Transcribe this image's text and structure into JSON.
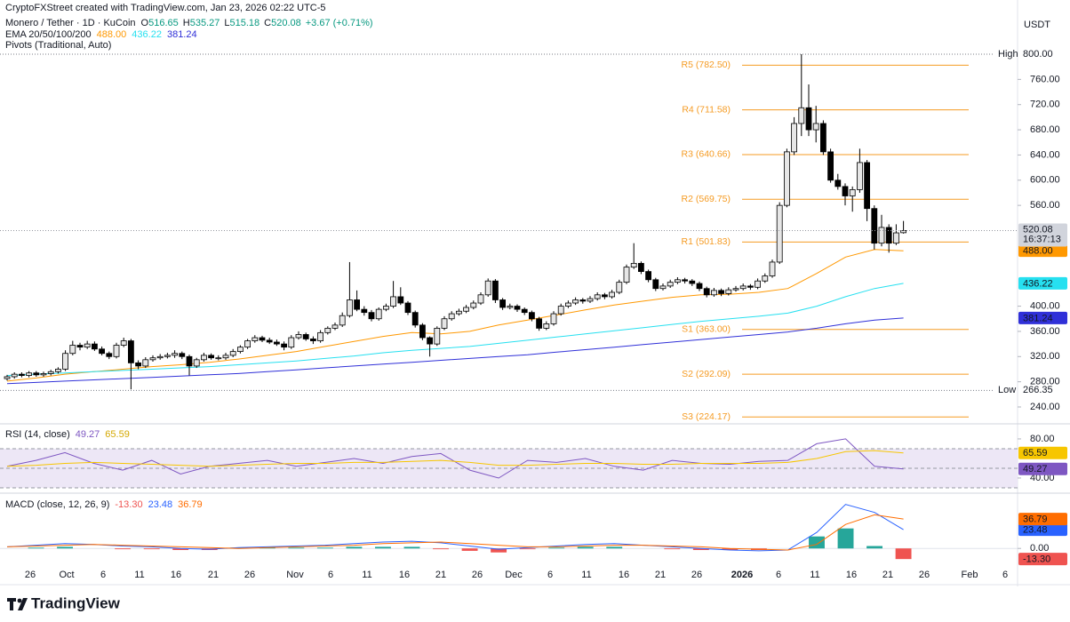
{
  "header": {
    "attribution": "CryptoFXStreet created with TradingView.com, Jan 23, 2026 02:22 UTC-5",
    "symbol": "Monero / Tether · 1D · KuCoin",
    "ohlc_keys": [
      "O",
      "H",
      "L",
      "C"
    ],
    "change": "+3.67 (+0.71%)",
    "ema_title": "EMA 20/50/100/200",
    "pivots_title": "Pivots (Traditional, Auto)",
    "currency": "USDT"
  },
  "chart_data": [
    {
      "type": "candlestick",
      "up_color": "#e6e6e6",
      "down_color": "#000000",
      "border_color": "#000000",
      "ylim": [
        240,
        800
      ],
      "yticks": [
        {
          "value": 760,
          "label": "760.00"
        },
        {
          "value": 720,
          "label": "720.00"
        },
        {
          "value": 680,
          "label": "680.00"
        },
        {
          "value": 640,
          "label": "640.00"
        },
        {
          "value": 600,
          "label": "600.00"
        },
        {
          "value": 560,
          "label": "560.00"
        },
        {
          "value": 400,
          "label": "400.00"
        },
        {
          "value": 360,
          "label": "360.00"
        },
        {
          "value": 320,
          "label": "320.00"
        },
        {
          "value": 280,
          "label": "280.00"
        },
        {
          "value": 240,
          "label": "240.00"
        }
      ],
      "xticks": [
        "26",
        "Oct",
        "6",
        "11",
        "16",
        "21",
        "26",
        "Nov",
        "6",
        "11",
        "16",
        "21",
        "26",
        "Dec",
        "6",
        "11",
        "16",
        "21",
        "26",
        "2026",
        "6",
        "11",
        "16",
        "21",
        "26",
        "Feb",
        "6"
      ],
      "countdown": "16:37:13",
      "high": {
        "label": "High",
        "value": 800,
        "value_label": "800.00"
      },
      "low": {
        "label": "Low",
        "value": 266.35
      },
      "pivot_color": "#f59b23",
      "pivots": [
        {
          "label": "R5 (782.50)",
          "value": 782.5
        },
        {
          "label": "R4 (711.58)",
          "value": 711.58
        },
        {
          "label": "R3 (640.66)",
          "value": 640.66
        },
        {
          "label": "R2 (569.75)",
          "value": 569.75
        },
        {
          "label": "R1 (501.83)",
          "value": 501.83
        },
        {
          "label": "S1 (363.00)",
          "value": 363
        },
        {
          "label": "S2 (292.09)",
          "value": 292.09
        },
        {
          "label": "S3 (224.17)",
          "value": 224.17
        }
      ],
      "series": [
        {
          "color": "#ff9800",
          "last_label": "488.00",
          "values": [
            281,
            286,
            292,
            296,
            300,
            304,
            307,
            311,
            316,
            322,
            328,
            336,
            344,
            352,
            358,
            356,
            360,
            370,
            378,
            386,
            394,
            402,
            408,
            414,
            418,
            419,
            422,
            428,
            452,
            478,
            490,
            488
          ]
        },
        {
          "color": "#26e0f0",
          "last_label": "436.22",
          "values": [
            290,
            292,
            294,
            296,
            298,
            300,
            302,
            304,
            307,
            310,
            313,
            317,
            321,
            326,
            330,
            333,
            336,
            341,
            346,
            351,
            356,
            361,
            366,
            371,
            376,
            380,
            384,
            389,
            400,
            415,
            428,
            436.22
          ]
        },
        {
          "color": "#3030d8",
          "last_label": "381.24",
          "values": [
            277,
            279,
            281,
            283,
            285,
            287,
            289,
            291,
            293,
            296,
            299,
            302,
            305,
            308,
            311,
            314,
            317,
            320,
            323,
            327,
            331,
            335,
            339,
            343,
            347,
            351,
            355,
            359,
            365,
            372,
            378,
            381.24
          ]
        }
      ],
      "candles": [
        [
          285,
          291,
          282,
          288
        ],
        [
          288,
          295,
          285,
          292
        ],
        [
          292,
          295,
          287,
          290
        ],
        [
          290,
          297,
          287,
          294
        ],
        [
          294,
          297,
          288,
          291
        ],
        [
          291,
          296,
          288,
          293
        ],
        [
          293,
          299,
          290,
          296
        ],
        [
          296,
          303,
          293,
          300
        ],
        [
          300,
          330,
          297,
          325
        ],
        [
          325,
          345,
          322,
          338
        ],
        [
          338,
          342,
          330,
          335
        ],
        [
          335,
          345,
          332,
          340
        ],
        [
          340,
          344,
          329,
          332
        ],
        [
          332,
          336,
          322,
          325
        ],
        [
          325,
          328,
          316,
          320
        ],
        [
          320,
          342,
          317,
          338
        ],
        [
          338,
          350,
          335,
          345
        ],
        [
          345,
          348,
          268,
          310
        ],
        [
          310,
          314,
          300,
          305
        ],
        [
          305,
          319,
          302,
          315
        ],
        [
          315,
          322,
          312,
          318
        ],
        [
          318,
          324,
          315,
          320
        ],
        [
          320,
          326,
          317,
          322
        ],
        [
          322,
          330,
          318,
          325
        ],
        [
          325,
          328,
          316,
          320
        ],
        [
          320,
          323,
          290,
          305
        ],
        [
          305,
          318,
          302,
          315
        ],
        [
          315,
          326,
          312,
          322
        ],
        [
          322,
          325,
          315,
          318
        ],
        [
          318,
          322,
          314,
          318
        ],
        [
          318,
          326,
          315,
          322
        ],
        [
          322,
          332,
          319,
          328
        ],
        [
          328,
          338,
          325,
          335
        ],
        [
          335,
          348,
          332,
          345
        ],
        [
          345,
          354,
          342,
          350
        ],
        [
          350,
          353,
          343,
          346
        ],
        [
          346,
          350,
          340,
          343
        ],
        [
          343,
          347,
          337,
          340
        ],
        [
          340,
          344,
          330,
          335
        ],
        [
          335,
          354,
          332,
          350
        ],
        [
          350,
          360,
          347,
          355
        ],
        [
          355,
          358,
          345,
          348
        ],
        [
          348,
          352,
          340,
          345
        ],
        [
          345,
          362,
          342,
          358
        ],
        [
          358,
          368,
          355,
          365
        ],
        [
          365,
          374,
          362,
          370
        ],
        [
          370,
          390,
          367,
          385
        ],
        [
          385,
          470,
          382,
          410
        ],
        [
          410,
          425,
          392,
          395
        ],
        [
          395,
          400,
          385,
          390
        ],
        [
          390,
          394,
          376,
          380
        ],
        [
          380,
          398,
          377,
          395
        ],
        [
          395,
          404,
          392,
          400
        ],
        [
          400,
          440,
          397,
          415
        ],
        [
          415,
          430,
          402,
          405
        ],
        [
          405,
          408,
          386,
          390
        ],
        [
          390,
          393,
          366,
          370
        ],
        [
          370,
          373,
          346,
          350
        ],
        [
          350,
          352,
          320,
          340
        ],
        [
          340,
          368,
          337,
          365
        ],
        [
          365,
          384,
          362,
          380
        ],
        [
          380,
          392,
          377,
          388
        ],
        [
          388,
          396,
          385,
          392
        ],
        [
          392,
          402,
          389,
          398
        ],
        [
          398,
          409,
          395,
          405
        ],
        [
          405,
          422,
          402,
          418
        ],
        [
          418,
          444,
          415,
          440
        ],
        [
          440,
          443,
          405,
          410
        ],
        [
          410,
          413,
          394,
          398
        ],
        [
          398,
          404,
          395,
          400
        ],
        [
          400,
          403,
          391,
          395
        ],
        [
          395,
          398,
          386,
          390
        ],
        [
          390,
          393,
          376,
          380
        ],
        [
          380,
          383,
          361,
          365
        ],
        [
          365,
          376,
          362,
          372
        ],
        [
          372,
          392,
          369,
          388
        ],
        [
          388,
          404,
          385,
          400
        ],
        [
          400,
          409,
          397,
          405
        ],
        [
          405,
          414,
          402,
          410
        ],
        [
          410,
          413,
          404,
          408
        ],
        [
          408,
          416,
          405,
          412
        ],
        [
          412,
          422,
          409,
          418
        ],
        [
          418,
          421,
          411,
          415
        ],
        [
          415,
          426,
          412,
          422
        ],
        [
          422,
          442,
          419,
          438
        ],
        [
          438,
          466,
          435,
          462
        ],
        [
          462,
          500,
          459,
          468
        ],
        [
          468,
          471,
          451,
          455
        ],
        [
          455,
          458,
          438,
          442
        ],
        [
          442,
          445,
          424,
          428
        ],
        [
          428,
          436,
          425,
          432
        ],
        [
          432,
          442,
          429,
          438
        ],
        [
          438,
          446,
          435,
          442
        ],
        [
          442,
          445,
          436,
          440
        ],
        [
          440,
          443,
          432,
          436
        ],
        [
          436,
          439,
          424,
          428
        ],
        [
          428,
          431,
          414,
          418
        ],
        [
          418,
          429,
          415,
          425
        ],
        [
          425,
          428,
          416,
          420
        ],
        [
          420,
          430,
          417,
          426
        ],
        [
          426,
          432,
          423,
          428
        ],
        [
          428,
          436,
          425,
          432
        ],
        [
          432,
          435,
          426,
          430
        ],
        [
          430,
          444,
          427,
          440
        ],
        [
          440,
          452,
          437,
          448
        ],
        [
          448,
          474,
          445,
          470
        ],
        [
          470,
          565,
          467,
          560
        ],
        [
          560,
          650,
          557,
          645
        ],
        [
          645,
          700,
          640,
          690
        ],
        [
          690,
          800,
          670,
          715
        ],
        [
          715,
          752,
          670,
          680
        ],
        [
          680,
          718,
          660,
          690
        ],
        [
          690,
          695,
          640,
          645
        ],
        [
          645,
          650,
          596,
          600
        ],
        [
          600,
          610,
          585,
          590
        ],
        [
          590,
          595,
          560,
          575
        ],
        [
          575,
          590,
          550,
          585
        ],
        [
          585,
          650,
          580,
          628
        ],
        [
          628,
          632,
          535,
          555
        ],
        [
          555,
          560,
          490,
          500
        ],
        [
          500,
          545,
          495,
          525
        ],
        [
          525,
          530,
          485,
          500
        ],
        [
          500,
          530,
          497,
          516.41
        ],
        [
          516.65,
          535.27,
          515.18,
          520.08
        ]
      ]
    },
    {
      "type": "line",
      "title": "RSI (14, close)",
      "ylim": [
        24.5,
        94.5
      ],
      "yticks": [
        {
          "value": 80,
          "label": "80.00"
        },
        {
          "value": 40,
          "label": "40.00"
        }
      ],
      "bands": [
        70,
        50,
        30
      ],
      "band_fill": "#ede7f6",
      "series": [
        {
          "color": "#7e57c2",
          "values": [
            52,
            58,
            66,
            55,
            48,
            58,
            44,
            52,
            55,
            58,
            52,
            56,
            60,
            55,
            62,
            65,
            48,
            40,
            58,
            56,
            60,
            52,
            48,
            58,
            55,
            54,
            57,
            58,
            75,
            80,
            52,
            49.27
          ]
        },
        {
          "color": "#f7c600",
          "values": [
            52,
            53,
            55,
            56,
            55,
            54,
            53,
            52,
            53,
            54,
            55,
            55,
            56,
            56,
            57,
            58,
            56,
            53,
            53,
            54,
            55,
            55,
            54,
            54,
            55,
            55,
            55,
            56,
            60,
            67,
            68,
            65.59
          ]
        }
      ]
    },
    {
      "type": "line",
      "title": "MACD (close, 12, 26, 9)",
      "ylim": [
        -42,
        68
      ],
      "yticks": [
        {
          "value": 0,
          "label": "0.00"
        }
      ],
      "series": [
        {
          "type": "bar",
          "color": "#26a69a",
          "negative_color": "#ef5350",
          "last_label": "-13.30",
          "values": [
            0,
            1,
            2,
            0,
            -1,
            -1,
            -2,
            -2,
            1,
            1,
            1,
            1,
            2,
            2,
            2,
            -1,
            -3,
            -5,
            -1,
            1,
            2,
            2,
            0,
            -1,
            -2,
            -2,
            -2,
            0,
            15,
            25,
            3,
            -13.3
          ]
        },
        {
          "color": "#2962ff",
          "values": [
            2,
            4,
            6,
            5,
            3,
            2,
            0,
            -1,
            1,
            2,
            3,
            4,
            6,
            8,
            9,
            7,
            3,
            -1,
            1,
            3,
            5,
            6,
            4,
            2,
            0,
            -2,
            -3,
            -2,
            20,
            55,
            45,
            23.48
          ]
        },
        {
          "color": "#ff6d00",
          "values": [
            2,
            3,
            4,
            5,
            4,
            3,
            2,
            1,
            0,
            1,
            2,
            3,
            4,
            6,
            7,
            8,
            6,
            4,
            2,
            2,
            3,
            4,
            4,
            3,
            2,
            0,
            -1,
            -2,
            5,
            30,
            42,
            36.79
          ]
        }
      ]
    }
  ],
  "footer": {
    "logo": "TradingView"
  }
}
